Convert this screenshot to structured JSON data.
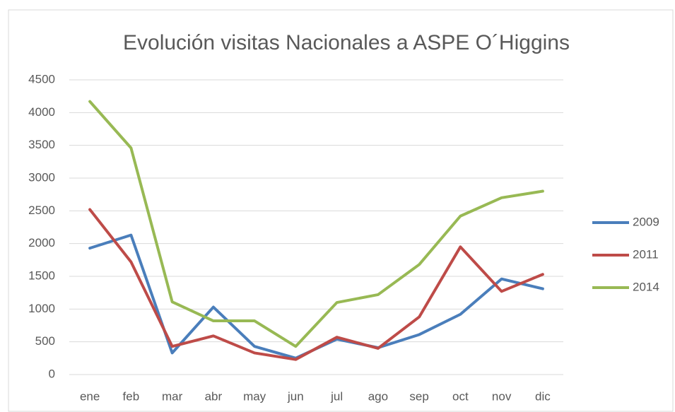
{
  "chart_data": {
    "type": "line",
    "title": "Evolución visitas Nacionales a ASPE O´Higgins",
    "categories": [
      "ene",
      "feb",
      "mar",
      "abr",
      "may",
      "jun",
      "jul",
      "ago",
      "sep",
      "oct",
      "nov",
      "dic"
    ],
    "series": [
      {
        "name": "2009",
        "color": "#4a7ebb",
        "values": [
          1930,
          2130,
          330,
          1030,
          430,
          250,
          540,
          410,
          610,
          920,
          1460,
          1310
        ]
      },
      {
        "name": "2011",
        "color": "#be4b48",
        "values": [
          2520,
          1720,
          430,
          590,
          330,
          230,
          570,
          400,
          880,
          1950,
          1270,
          1530
        ]
      },
      {
        "name": "2014",
        "color": "#98b954",
        "values": [
          4170,
          3460,
          1110,
          820,
          820,
          430,
          1100,
          1220,
          1680,
          2420,
          2700,
          2800
        ]
      }
    ],
    "ylim": [
      0,
      4500
    ],
    "yticks": [
      0,
      500,
      1000,
      1500,
      2000,
      2500,
      3000,
      3500,
      4000,
      4500
    ],
    "grid": true,
    "legend": "right"
  }
}
